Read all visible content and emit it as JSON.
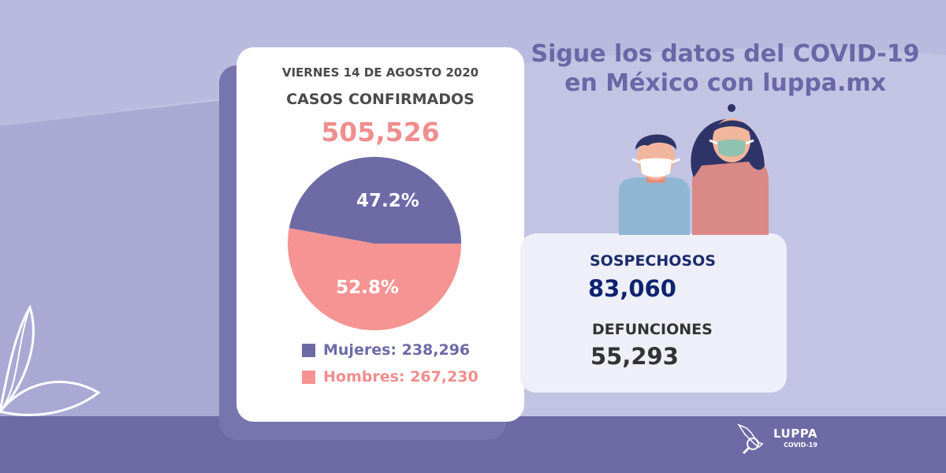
{
  "title": {
    "line1": "Sigue los datos del COVID-19",
    "line2": "en México con luppa.mx"
  },
  "card": {
    "date": "VIERNES 14 DE AGOSTO 2020",
    "confirmed_label": "CASOS CONFIRMADOS",
    "confirmed_value": "505,526"
  },
  "legend": {
    "women": "Mujeres: 238,296",
    "men": "Hombres: 267,230"
  },
  "stats": {
    "suspected_label": "SOSPECHOSOS",
    "suspected_value": "83,060",
    "deaths_label": "DEFUNCIONES",
    "deaths_value": "55,293"
  },
  "logo": {
    "name": "LUPPA",
    "subtitle": "COVID-19"
  },
  "colors": {
    "women": "#6d6aa6",
    "men": "#f59492",
    "confirmed": "#f08e8e",
    "title": "#6a67a7",
    "stat_label": "#1d2b6b",
    "stat_value": "#0e2370",
    "death_text": "#333333",
    "background": "#c3c3e3",
    "band": "#6d6aa6"
  },
  "chart_data": {
    "type": "pie",
    "title": "",
    "slices": [
      {
        "name": "Mujeres",
        "value": 238296,
        "percent_label": "47.2%",
        "color": "#6d6aa6"
      },
      {
        "name": "Hombres",
        "value": 267230,
        "percent_label": "52.8%",
        "color": "#f59492"
      }
    ]
  }
}
